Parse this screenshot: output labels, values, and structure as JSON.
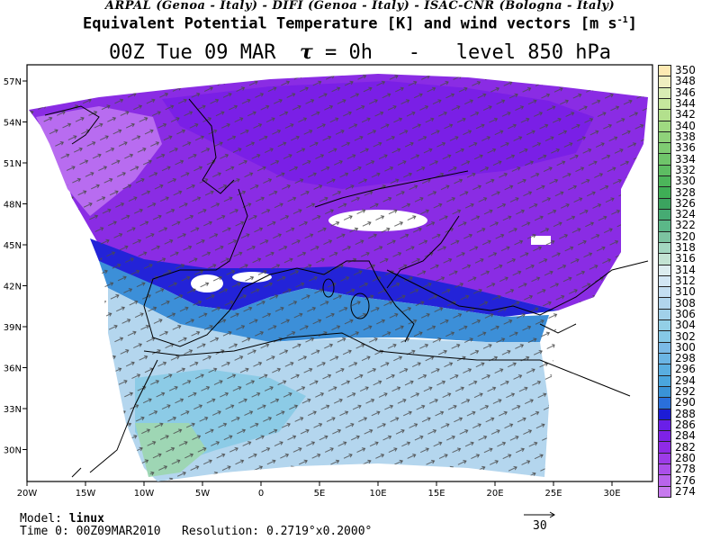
{
  "header": {
    "credits": "ARPAL (Genoa - Italy)  -  DIFI (Genoa - Italy)  -  ISAC-CNR (Bologna - Italy)",
    "title_main": "Equivalent Potential Temperature [K] and wind vectors [m s",
    "title_units_exp": "-1",
    "title_close": "]",
    "time_label": "00Z Tue 09 MAR",
    "tau_symbol": "τ",
    "tau_text": "= 0h",
    "separator": "-",
    "level_label": "level 850 hPa"
  },
  "map": {
    "lon_ticks": [
      "20W",
      "15W",
      "10W",
      "5W",
      "0",
      "5E",
      "10E",
      "15E",
      "20E",
      "25E",
      "30E"
    ],
    "lat_ticks": [
      "57N",
      "54N",
      "51N",
      "48N",
      "45N",
      "42N",
      "39N",
      "36N",
      "33N",
      "30N"
    ],
    "frame_color": "#000000",
    "coast_color": "#000000"
  },
  "colorbar": {
    "labels": [
      "350",
      "348",
      "346",
      "344",
      "342",
      "340",
      "338",
      "336",
      "334",
      "332",
      "330",
      "328",
      "326",
      "324",
      "322",
      "320",
      "318",
      "316",
      "314",
      "312",
      "310",
      "308",
      "306",
      "304",
      "302",
      "300",
      "298",
      "296",
      "294",
      "292",
      "290",
      "288",
      "286",
      "284",
      "282",
      "280",
      "278",
      "276",
      "274"
    ],
    "colors": [
      "#fde9b3",
      "#efeec0",
      "#d8ecb4",
      "#c6e79d",
      "#b3e08d",
      "#9fd981",
      "#8fd27a",
      "#7fcc72",
      "#6fc56a",
      "#5dbd62",
      "#4cb55a",
      "#3fae56",
      "#3ba35f",
      "#46ab73",
      "#5bb788",
      "#7cc3a0",
      "#a3d6c0",
      "#c3e3d3",
      "#dcecef",
      "#d2e6f4",
      "#c4def1",
      "#b1d5ed",
      "#a1d0e9",
      "#93cfe6",
      "#86c9e6",
      "#7bbae6",
      "#6bb5e4",
      "#59aee0",
      "#4aa6dd",
      "#3a93d6",
      "#2a6fdb",
      "#1c1cd6",
      "#6a1fe8",
      "#7e22e6",
      "#8f2ae6",
      "#9d3be8",
      "#ab4fea",
      "#b964ec",
      "#c77aee"
    ]
  },
  "footer": {
    "model_label": "Model:",
    "model_value": "linux",
    "time_label": "Time 0:",
    "time_value": "00Z09MAR2010",
    "resolution_label": "Resolution:",
    "resolution_value": "0.2719°x0.2000°"
  },
  "reference_vector": {
    "value": "30"
  }
}
